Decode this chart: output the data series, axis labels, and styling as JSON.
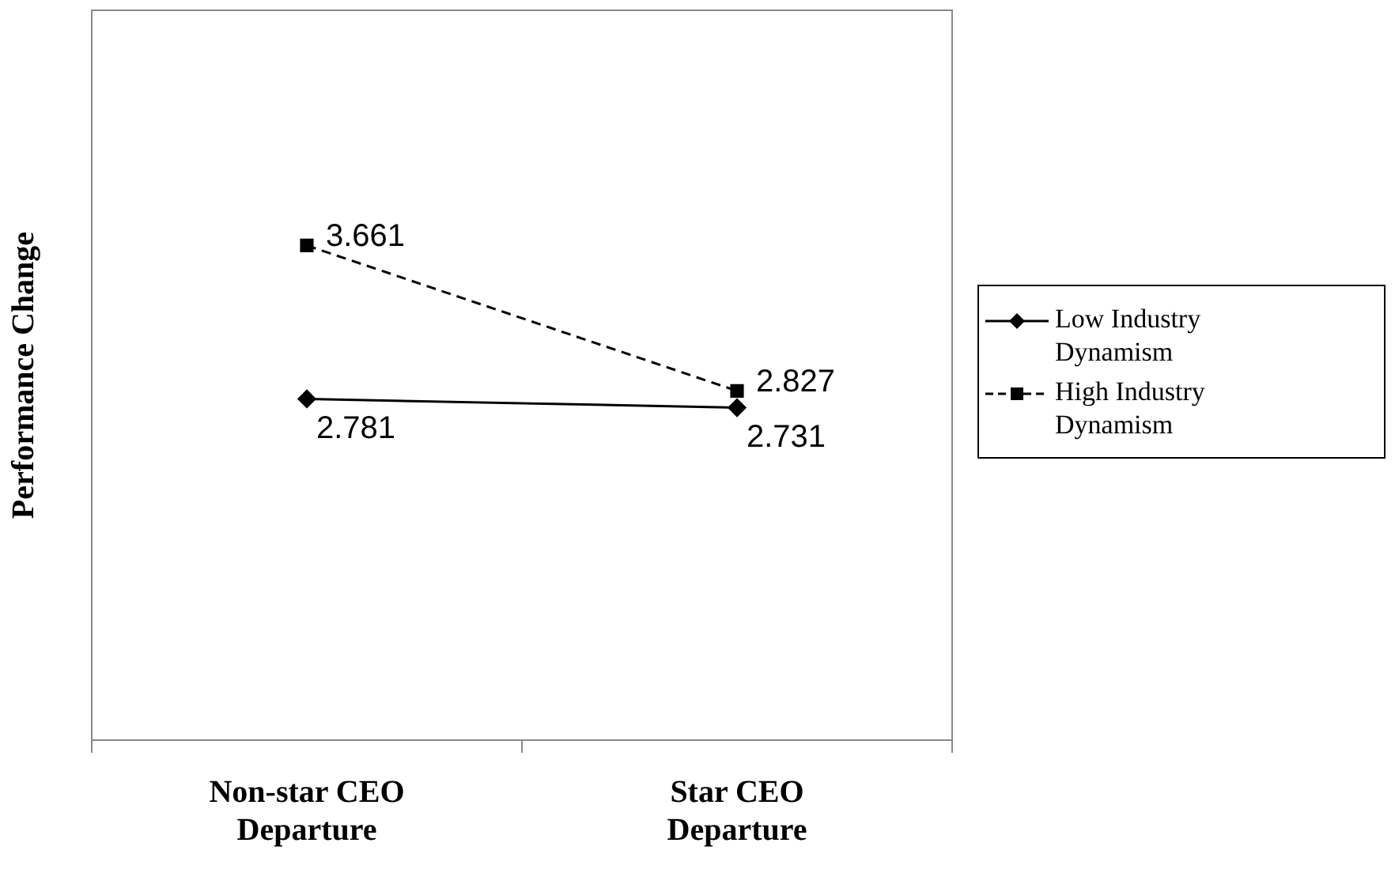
{
  "chart_data": {
    "type": "line",
    "ylabel": "Performance Change",
    "categories": [
      "Non-star CEO Departure",
      "Star CEO Departure"
    ],
    "series": [
      {
        "name": "Low Industry Dynamism",
        "color": "#000000",
        "values": [
          2.781,
          2.731
        ],
        "marker": "diamond",
        "line_style": "solid"
      },
      {
        "name": "High Industry Dynamism",
        "color": "#000000",
        "values": [
          3.661,
          2.827
        ],
        "marker": "square",
        "line_style": "dashed"
      }
    ],
    "data_labels": true,
    "legend": "right",
    "grid": false
  }
}
